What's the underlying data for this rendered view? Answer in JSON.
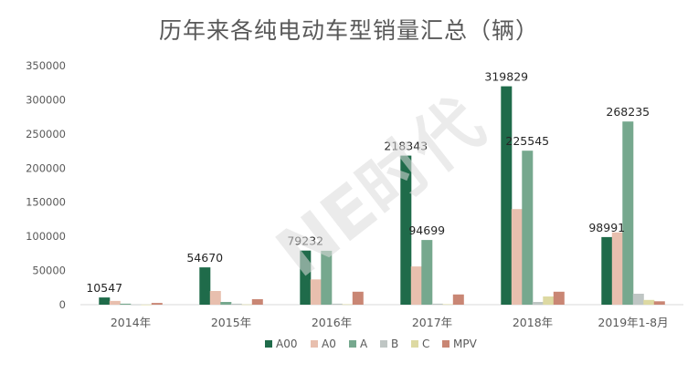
{
  "chart_data": {
    "type": "bar",
    "title": "历年来各纯电动车型销量汇总（辆）",
    "categories": [
      "2014年",
      "2015年",
      "2016年",
      "2017年",
      "2018年",
      "2019年1-8月"
    ],
    "series": [
      {
        "name": "A00",
        "color": "#1f6b4a",
        "values": [
          10547,
          54670,
          79232,
          218343,
          319829,
          98991
        ]
      },
      {
        "name": "A0",
        "color": "#e8bfae",
        "values": [
          5500,
          20000,
          37000,
          56000,
          140000,
          106000
        ]
      },
      {
        "name": "A",
        "color": "#76a88e",
        "values": [
          1500,
          4000,
          79000,
          94699,
          225545,
          268235
        ]
      },
      {
        "name": "B",
        "color": "#bfc6c4",
        "values": [
          300,
          1500,
          1500,
          1500,
          4000,
          16000
        ]
      },
      {
        "name": "C",
        "color": "#ddd9a2",
        "values": [
          200,
          400,
          600,
          700,
          12000,
          7000
        ]
      },
      {
        "name": "MPV",
        "color": "#c98674",
        "values": [
          2500,
          8000,
          19000,
          15000,
          19000,
          5000
        ]
      }
    ],
    "data_labels": [
      {
        "series": "A00",
        "category": "2014年",
        "text": "10547"
      },
      {
        "series": "A00",
        "category": "2015年",
        "text": "54670"
      },
      {
        "series": "A00",
        "category": "2016年",
        "text": "79232"
      },
      {
        "series": "A00",
        "category": "2017年",
        "text": "218343"
      },
      {
        "series": "A00",
        "category": "2018年",
        "text": "319829"
      },
      {
        "series": "A00",
        "category": "2019年1-8月",
        "text": "98991"
      },
      {
        "series": "A",
        "category": "2017年",
        "text": "94699"
      },
      {
        "series": "A",
        "category": "2018年",
        "text": "225545"
      },
      {
        "series": "A",
        "category": "2019年1-8月",
        "text": "268235"
      }
    ],
    "yticks": [
      "0",
      "50000",
      "100000",
      "150000",
      "200000",
      "250000",
      "300000",
      "350000"
    ],
    "ylim": [
      0,
      350000
    ],
    "grid": false,
    "legend": "bottom"
  },
  "watermark": "NE时代"
}
